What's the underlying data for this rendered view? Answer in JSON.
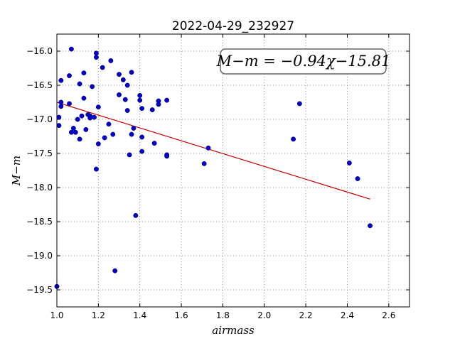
{
  "chart_data": {
    "type": "scatter",
    "title": "2022-04-29_232927",
    "xlabel": "airmass",
    "ylabel": "M−m",
    "xlim": [
      1.0,
      2.7
    ],
    "ylim": [
      -19.75,
      -15.75
    ],
    "y_inverted": true,
    "grid": true,
    "xticks": [
      "1.0",
      "1.2",
      "1.4",
      "1.6",
      "1.8",
      "2.0",
      "2.2",
      "2.4",
      "2.6"
    ],
    "yticks": [
      "−16.0",
      "−16.5",
      "−17.0",
      "−17.5",
      "−18.0",
      "−18.5",
      "−19.0",
      "−19.5"
    ],
    "annotation": "M−m = −0.94χ−15.81",
    "colors": {
      "points": "#0000cc",
      "fit": "#cc0000"
    },
    "fit": {
      "slope": -0.94,
      "intercept": -15.81,
      "x_range": [
        1.0,
        2.51
      ]
    },
    "points": [
      [
        1.0,
        -19.45
      ],
      [
        1.01,
        -16.97
      ],
      [
        1.01,
        -17.09
      ],
      [
        1.02,
        -16.81
      ],
      [
        1.02,
        -16.75
      ],
      [
        1.02,
        -16.43
      ],
      [
        1.06,
        -16.36
      ],
      [
        1.06,
        -16.77
      ],
      [
        1.07,
        -15.97
      ],
      [
        1.07,
        -17.19
      ],
      [
        1.08,
        -17.13
      ],
      [
        1.09,
        -17.19
      ],
      [
        1.1,
        -17.0
      ],
      [
        1.11,
        -17.29
      ],
      [
        1.11,
        -16.48
      ],
      [
        1.12,
        -16.95
      ],
      [
        1.13,
        -16.69
      ],
      [
        1.13,
        -16.32
      ],
      [
        1.14,
        -17.15
      ],
      [
        1.15,
        -16.93
      ],
      [
        1.16,
        -16.95
      ],
      [
        1.16,
        -16.98
      ],
      [
        1.17,
        -16.52
      ],
      [
        1.18,
        -16.97
      ],
      [
        1.19,
        -16.03
      ],
      [
        1.19,
        -16.09
      ],
      [
        1.2,
        -16.82
      ],
      [
        1.2,
        -17.36
      ],
      [
        1.19,
        -17.73
      ],
      [
        1.22,
        -16.24
      ],
      [
        1.23,
        -17.27
      ],
      [
        1.25,
        -17.07
      ],
      [
        1.26,
        -16.14
      ],
      [
        1.27,
        -17.22
      ],
      [
        1.28,
        -19.22
      ],
      [
        1.3,
        -16.34
      ],
      [
        1.3,
        -16.64
      ],
      [
        1.32,
        -16.42
      ],
      [
        1.33,
        -16.71
      ],
      [
        1.34,
        -16.5
      ],
      [
        1.34,
        -16.87
      ],
      [
        1.35,
        -17.52
      ],
      [
        1.36,
        -16.31
      ],
      [
        1.36,
        -17.22
      ],
      [
        1.37,
        -17.13
      ],
      [
        1.38,
        -18.41
      ],
      [
        1.4,
        -16.65
      ],
      [
        1.4,
        -16.72
      ],
      [
        1.41,
        -16.84
      ],
      [
        1.41,
        -17.26
      ],
      [
        1.41,
        -17.47
      ],
      [
        1.46,
        -16.86
      ],
      [
        1.47,
        -17.35
      ],
      [
        1.49,
        -16.73
      ],
      [
        1.49,
        -16.78
      ],
      [
        1.53,
        -16.72
      ],
      [
        1.53,
        -17.52
      ],
      [
        1.53,
        -17.54
      ],
      [
        1.71,
        -17.65
      ],
      [
        1.73,
        -17.42
      ],
      [
        2.14,
        -17.29
      ],
      [
        2.17,
        -16.77
      ],
      [
        2.41,
        -17.64
      ],
      [
        2.45,
        -17.87
      ],
      [
        2.51,
        -18.56
      ]
    ]
  }
}
